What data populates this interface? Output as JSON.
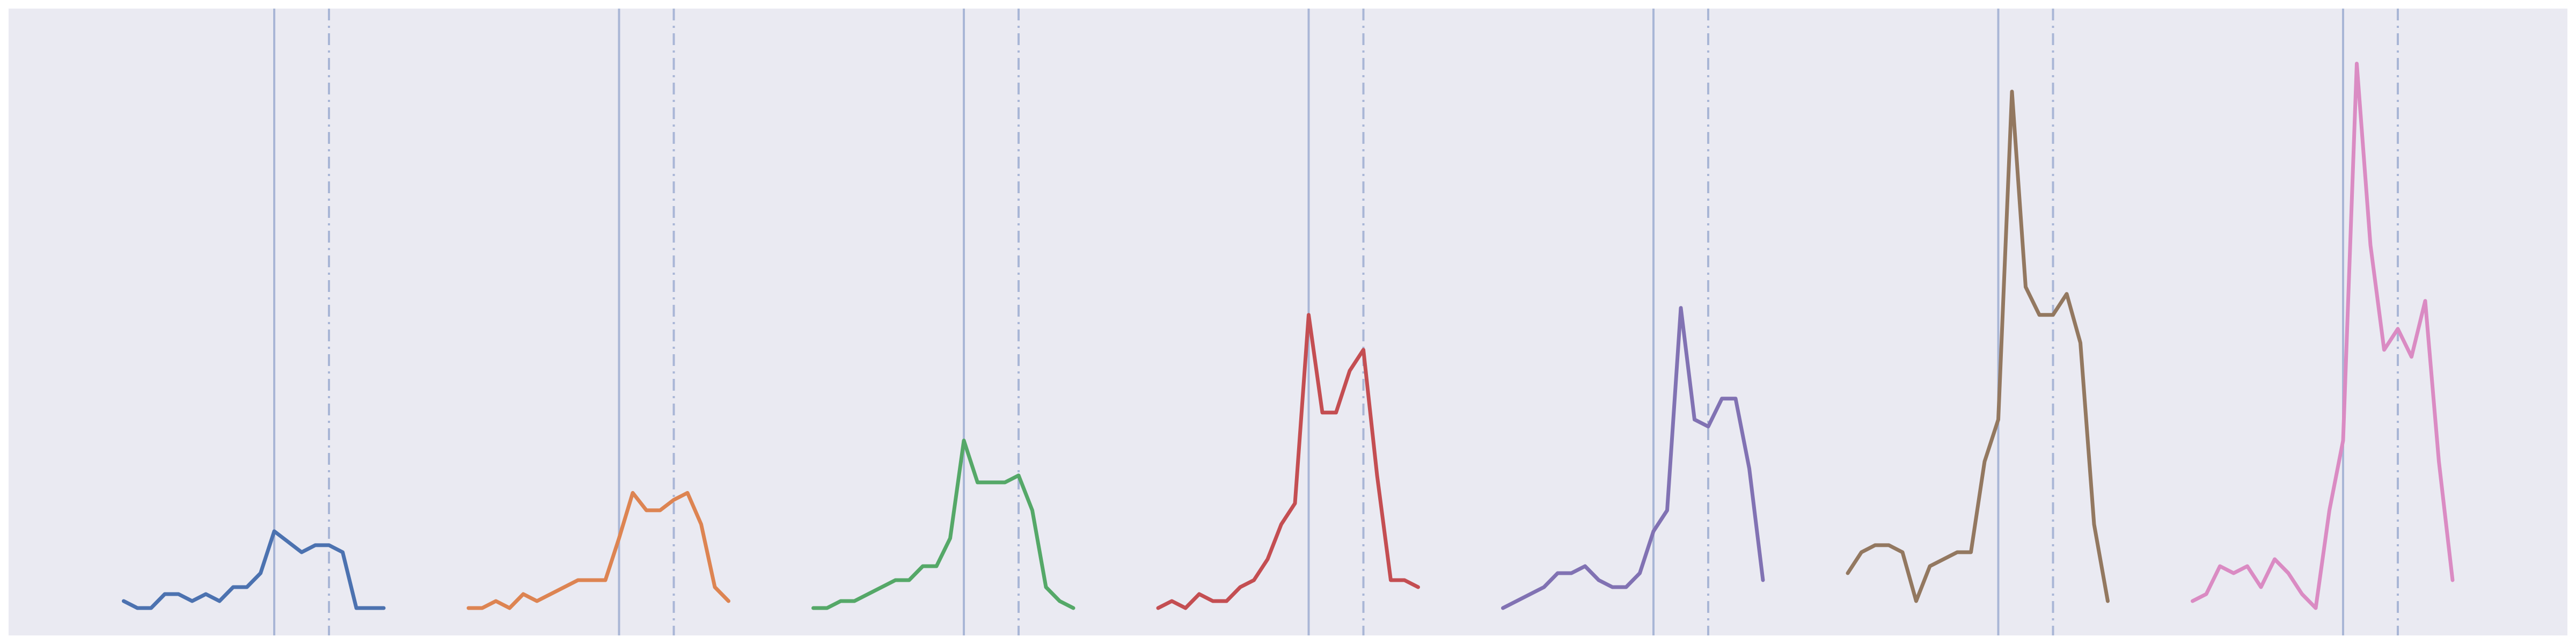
{
  "chart_data": {
    "type": "line",
    "grid": false,
    "axes_visible": false,
    "background_color": "#eaeaf2",
    "outer_background_color": "#ffffff",
    "ylim": [
      0,
      330
    ],
    "reference_line_color": "#a9b6d6",
    "reference_lines": [
      {
        "style": "solid",
        "x": 0
      },
      {
        "style": "dash-dot",
        "x": 4
      }
    ],
    "series": [
      {
        "color": "#4c72b0",
        "x": [
          -11,
          -10,
          -9,
          -8,
          -7,
          -6,
          -5,
          -4,
          -3,
          -2,
          -1,
          0,
          1,
          2,
          3,
          4,
          5,
          6,
          7,
          8
        ],
        "y": [
          4,
          0,
          0,
          8,
          8,
          4,
          8,
          4,
          12,
          12,
          20,
          44,
          38,
          32,
          36,
          36,
          32,
          0,
          0,
          0
        ]
      },
      {
        "color": "#dd8452",
        "x": [
          -11,
          -10,
          -9,
          -8,
          -7,
          -6,
          -5,
          -4,
          -3,
          -2,
          -1,
          0,
          1,
          2,
          3,
          4,
          5,
          6,
          7,
          8
        ],
        "y": [
          0,
          0,
          4,
          0,
          8,
          4,
          8,
          12,
          16,
          16,
          16,
          40,
          66,
          56,
          56,
          62,
          66,
          48,
          12,
          4
        ]
      },
      {
        "color": "#55a868",
        "x": [
          -11,
          -10,
          -9,
          -8,
          -7,
          -6,
          -5,
          -4,
          -3,
          -2,
          -1,
          0,
          1,
          2,
          3,
          4,
          5,
          6,
          7,
          8
        ],
        "y": [
          0,
          0,
          4,
          4,
          8,
          12,
          16,
          16,
          24,
          24,
          40,
          96,
          72,
          72,
          72,
          76,
          56,
          12,
          4,
          0
        ]
      },
      {
        "color": "#c44e52",
        "x": [
          -11,
          -10,
          -9,
          -8,
          -7,
          -6,
          -5,
          -4,
          -3,
          -2,
          -1,
          0,
          1,
          2,
          3,
          4,
          5,
          6,
          7,
          8
        ],
        "y": [
          0,
          4,
          0,
          8,
          4,
          4,
          12,
          16,
          28,
          48,
          60,
          168,
          112,
          112,
          136,
          148,
          76,
          16,
          16,
          12
        ]
      },
      {
        "color": "#8172b3",
        "x": [
          -11,
          -10,
          -9,
          -8,
          -7,
          -6,
          -5,
          -4,
          -3,
          -2,
          -1,
          0,
          1,
          2,
          3,
          4,
          5,
          6,
          7,
          8
        ],
        "y": [
          0,
          4,
          8,
          12,
          20,
          20,
          24,
          16,
          12,
          12,
          20,
          44,
          56,
          172,
          108,
          104,
          120,
          120,
          80,
          16
        ]
      },
      {
        "color": "#937860",
        "x": [
          -11,
          -10,
          -9,
          -8,
          -7,
          -6,
          -5,
          -4,
          -3,
          -2,
          -1,
          0,
          1,
          2,
          3,
          4,
          5,
          6,
          7,
          8
        ],
        "y": [
          20,
          32,
          36,
          36,
          32,
          4,
          24,
          28,
          32,
          32,
          84,
          108,
          296,
          184,
          168,
          168,
          180,
          152,
          48,
          4
        ]
      },
      {
        "color": "#da8bc3",
        "x": [
          -11,
          -10,
          -9,
          -8,
          -7,
          -6,
          -5,
          -4,
          -3,
          -2,
          -1,
          0,
          1,
          2,
          3,
          4,
          5,
          6,
          7,
          8
        ],
        "y": [
          4,
          8,
          24,
          20,
          24,
          12,
          28,
          20,
          8,
          0,
          56,
          96,
          312,
          208,
          148,
          160,
          144,
          176,
          84,
          16
        ]
      }
    ]
  }
}
